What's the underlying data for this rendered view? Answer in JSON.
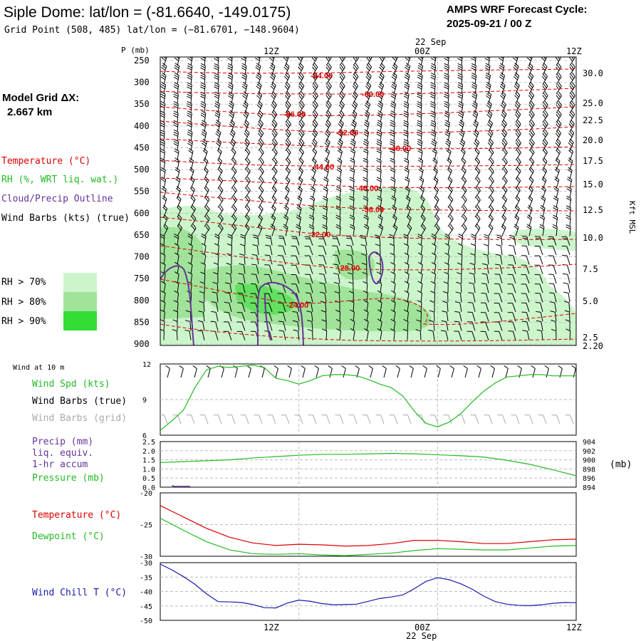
{
  "header": {
    "title": "Siple Dome:  lat/lon = (-81.6640, -149.0175)",
    "grid_point": "Grid Point (508, 485) lat/lon = (−81.6701, −148.9604)",
    "product": "AMPS WRF Forecast Cycle:",
    "cycle": "2025-09-21 / 00  Z",
    "model_grid_label": "Model Grid ΔX:",
    "model_grid_value": "2.667 km"
  },
  "time_axis": {
    "date_label": "22 Sep",
    "ticks": [
      "12Z",
      "00Z",
      "12Z"
    ]
  },
  "legend_left": {
    "temperature": "Temperature (°C)",
    "rh": "RH (%, WRT liq. wat.)",
    "cloud": "Cloud/Precip Outline",
    "wind": "Wind Barbs (kts) (true)",
    "rh70": "RH > 70%",
    "rh80": "RH > 80%",
    "rh90": "RH > 90%"
  },
  "colors": {
    "temperature": "#dd0000",
    "rh70": "#ccf5cc",
    "rh80": "#a0e49a",
    "rh90": "#33dd33",
    "cloud": "#663399",
    "wind_spd": "#22bb22",
    "dewpoint": "#22bb22",
    "wind_chill": "#1a1aaa",
    "grid_barbs": "#aaaaaa"
  },
  "chart_data": [
    {
      "type": "time-height cross section",
      "y_axis_label": "P (mb)",
      "pressure_ticks": [
        "250",
        "300",
        "350",
        "400",
        "450",
        "500",
        "550",
        "600",
        "650",
        "700",
        "750",
        "800",
        "850",
        "900"
      ],
      "height_axis_label": "Kft MSL",
      "height_ticks": [
        "30.0",
        "25.0",
        "22.5",
        "20.0",
        "17.5",
        "15.0",
        "12.5",
        "10.0",
        "7.5",
        "5.0",
        "2.5",
        "2.20"
      ],
      "temperature_contour_labels": [
        "-64.00",
        "-60.00",
        "-56.00",
        "-52.00",
        "-48.00",
        "-44.00",
        "-40.00",
        "-36.00",
        "-32.00",
        "-28.00",
        "-24.00"
      ],
      "xlim_hours": [
        0,
        36
      ]
    },
    {
      "type": "line",
      "panel_label": "Wind at 10 m",
      "series_labels": [
        "Wind Spd (kts)",
        "Wind Barbs (true)",
        "Wind Barbs (grid)"
      ],
      "y_ticks": [
        "12",
        "9",
        "6"
      ],
      "ylim": [
        6,
        12
      ],
      "x": [
        0,
        1,
        2,
        3,
        4,
        5,
        6,
        7,
        8,
        9,
        10,
        11,
        12,
        13,
        14,
        15,
        16,
        17,
        18,
        19,
        20,
        21,
        22,
        23,
        24,
        25,
        26,
        27,
        28,
        29,
        30,
        31,
        32,
        33,
        34,
        35,
        36
      ],
      "wind_speed": [
        6.4,
        7.2,
        8.1,
        10.0,
        11.5,
        11.8,
        11.7,
        11.8,
        11.9,
        11.7,
        10.8,
        10.6,
        10.3,
        10.6,
        11.0,
        11.1,
        11.1,
        11.0,
        10.7,
        10.3,
        10.0,
        9.3,
        8.0,
        7.0,
        6.7,
        7.1,
        7.8,
        8.8,
        9.7,
        10.4,
        10.9,
        11.0,
        11.1,
        11.1,
        11.0,
        11.0,
        11.0
      ]
    },
    {
      "type": "line",
      "panel_labels": [
        "Precip (mm)",
        "liq. equiv.",
        "1-hr accum",
        "Pressure (mb)"
      ],
      "unit_label": "(mb)",
      "left_ticks": [
        "2.5",
        "2.0",
        "1.5",
        "1.0",
        "0.5",
        "0.0"
      ],
      "right_ticks": [
        "904",
        "902",
        "900",
        "898",
        "896",
        "894"
      ],
      "ylim_mm": [
        0,
        2.5
      ],
      "ylim_mb": [
        894,
        904
      ],
      "x": [
        0,
        2,
        4,
        6,
        8,
        10,
        12,
        14,
        16,
        18,
        20,
        22,
        24,
        26,
        28,
        30,
        32,
        34,
        36
      ],
      "pressure": [
        899.4,
        899.6,
        899.8,
        900.0,
        900.4,
        900.7,
        901.0,
        901.2,
        901.2,
        901.3,
        901.4,
        901.3,
        901.1,
        900.9,
        900.6,
        899.9,
        899.0,
        897.8,
        896.5
      ],
      "precip_x": [
        1,
        1.2,
        2.6
      ],
      "precip": [
        0.05,
        0.0,
        0.0
      ]
    },
    {
      "type": "line",
      "series_labels": [
        "Temperature (°C)",
        "Dewpoint (°C)"
      ],
      "y_ticks": [
        "-20",
        "-25",
        "-30"
      ],
      "ylim": [
        -30,
        -20
      ],
      "x": [
        0,
        2,
        4,
        6,
        8,
        10,
        12,
        14,
        16,
        18,
        20,
        22,
        24,
        26,
        28,
        30,
        32,
        34,
        36
      ],
      "temperature": [
        -22.0,
        -23.8,
        -25.6,
        -27.0,
        -27.9,
        -28.3,
        -28.1,
        -28.2,
        -28.4,
        -28.3,
        -28.0,
        -27.5,
        -27.5,
        -27.7,
        -28.0,
        -28.0,
        -27.7,
        -27.4,
        -27.3
      ],
      "dewpoint": [
        -24.0,
        -25.9,
        -27.7,
        -29.0,
        -29.6,
        -29.7,
        -29.6,
        -29.8,
        -29.9,
        -29.7,
        -29.5,
        -29.1,
        -28.8,
        -28.9,
        -29.0,
        -29.0,
        -28.7,
        -28.4,
        -28.3
      ]
    },
    {
      "type": "line",
      "series_labels": [
        "Wind Chill T (°C)"
      ],
      "y_ticks": [
        "-30",
        "-35",
        "-40",
        "-45",
        "-50"
      ],
      "ylim": [
        -50,
        -30
      ],
      "x": [
        0,
        1,
        2,
        3,
        4,
        5,
        6,
        7,
        8,
        9,
        10,
        11,
        12,
        13,
        14,
        15,
        16,
        17,
        18,
        19,
        20,
        21,
        22,
        23,
        24,
        25,
        26,
        27,
        28,
        29,
        30,
        31,
        32,
        33,
        34,
        35,
        36
      ],
      "wind_chill": [
        -30.5,
        -32.5,
        -34.8,
        -37.5,
        -40.8,
        -43.5,
        -43.6,
        -43.8,
        -44.5,
        -45.6,
        -45.7,
        -44.0,
        -43.0,
        -43.4,
        -44.2,
        -44.6,
        -44.5,
        -44.4,
        -43.4,
        -42.4,
        -41.9,
        -41.2,
        -39.0,
        -36.5,
        -35.2,
        -35.9,
        -37.3,
        -39.2,
        -41.6,
        -43.5,
        -44.4,
        -44.8,
        -44.9,
        -44.6,
        -44.1,
        -43.8,
        -43.9
      ]
    }
  ]
}
